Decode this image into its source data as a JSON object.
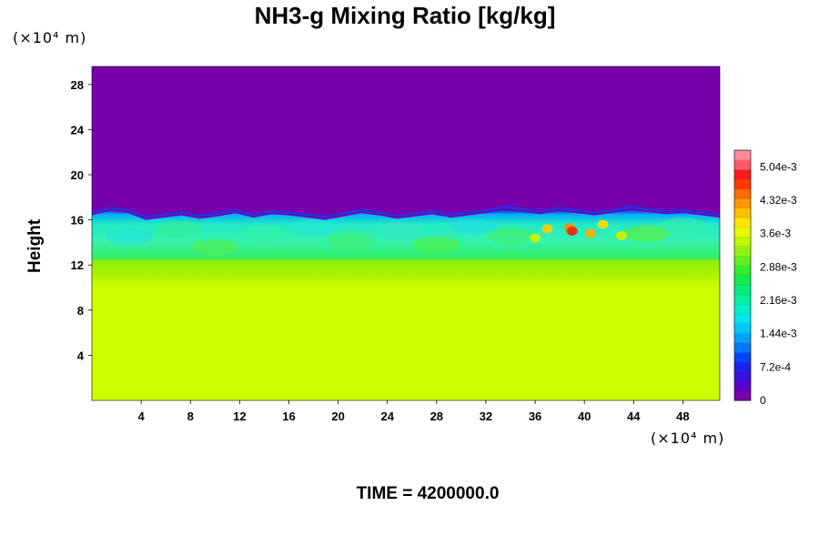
{
  "chart_data": {
    "type": "heatmap",
    "title": "NH3-g Mixing Ratio [kg/kg]",
    "ylabel": "Height",
    "xlabel": "",
    "x_unit": "(×10⁴ m)",
    "y_unit": "(×10⁴ m)",
    "x_ticks": [
      4,
      8,
      12,
      16,
      20,
      24,
      28,
      32,
      36,
      40,
      44,
      48
    ],
    "y_ticks": [
      4,
      8,
      12,
      16,
      20,
      24,
      28
    ],
    "xlim": [
      0,
      51
    ],
    "ylim": [
      0,
      29.6
    ],
    "colorbar": {
      "min": 0,
      "max": 0.0054,
      "tick_labels": [
        "0",
        "7.2e-4",
        "1.44e-3",
        "2.16e-3",
        "2.88e-3",
        "3.6e-3",
        "4.32e-3",
        "5.04e-3"
      ],
      "tick_values": [
        0,
        0.00072,
        0.00144,
        0.00216,
        0.00288,
        0.0036,
        0.00432,
        0.00504
      ],
      "colormap": "rainbow (purple-blue-cyan-green-yellow-orange-red-pink)"
    },
    "field_description": {
      "lower_layer": {
        "height_range": [
          0,
          10
        ],
        "value": 0.0036,
        "color": "#ccff00"
      },
      "transition_layer": {
        "height_range": [
          10,
          12.5
        ],
        "value_range": [
          0.0029,
          0.0036
        ]
      },
      "mixed_layer": {
        "height_range": [
          12.5,
          16.8
        ],
        "value_range": [
          0.0014,
          0.0029
        ]
      },
      "upper_layer": {
        "height_range": [
          17,
          29.6
        ],
        "value": 0,
        "color": "#7700aa"
      },
      "hotspots_x": [
        36,
        42
      ],
      "hotspot_max": 0.005
    }
  },
  "footer": {
    "time_label": "TIME = 4200000.0"
  }
}
